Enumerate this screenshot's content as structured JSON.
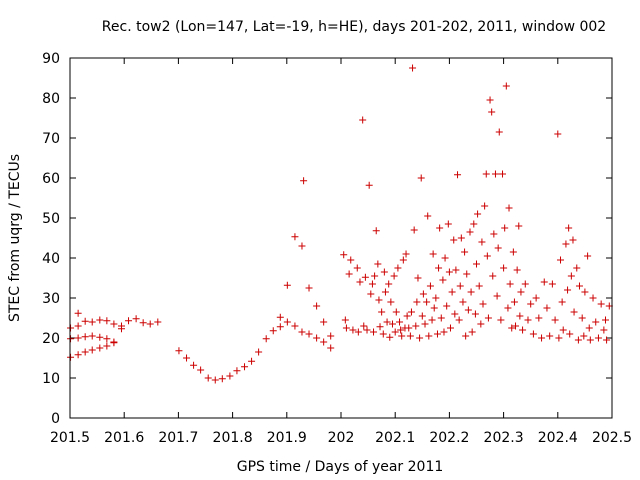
{
  "chart_data": {
    "type": "scatter",
    "title": "Rec. tow2 (Lon=147, Lat=-19, h=HE), days 201-202, 2011, window 002",
    "xlabel": "GPS time / Days of year 2011",
    "ylabel": "STEC from uqrg / TECUs",
    "xlim": [
      201.5,
      202.5
    ],
    "ylim": [
      0,
      90
    ],
    "xticks": [
      201.5,
      201.6,
      201.7,
      201.8,
      201.9,
      202,
      202.1,
      202.2,
      202.3,
      202.4,
      202.5
    ],
    "xtick_labels": [
      "201.5",
      "201.6",
      "201.7",
      "201.8",
      "201.9",
      "202",
      "202.1",
      "202.2",
      "202.3",
      "202.4",
      "202.5"
    ],
    "yticks": [
      0,
      10,
      20,
      30,
      40,
      50,
      60,
      70,
      80,
      90
    ],
    "ytick_labels": [
      "0",
      "10",
      "20",
      "30",
      "40",
      "50",
      "60",
      "70",
      "80",
      "90"
    ],
    "marker": "+",
    "color": "#cc0000",
    "grid": false,
    "series": [
      {
        "name": "STEC",
        "points": [
          [
            201.501,
            15.2
          ],
          [
            201.515,
            15.8
          ],
          [
            201.528,
            16.5
          ],
          [
            201.541,
            17.0
          ],
          [
            201.555,
            17.5
          ],
          [
            201.568,
            18.0
          ],
          [
            201.581,
            18.8
          ],
          [
            201.501,
            19.8
          ],
          [
            201.515,
            20.0
          ],
          [
            201.528,
            20.3
          ],
          [
            201.541,
            20.5
          ],
          [
            201.555,
            20.2
          ],
          [
            201.568,
            19.8
          ],
          [
            201.581,
            19.0
          ],
          [
            201.501,
            22.5
          ],
          [
            201.515,
            23.0
          ],
          [
            201.528,
            24.2
          ],
          [
            201.541,
            24.0
          ],
          [
            201.555,
            24.5
          ],
          [
            201.568,
            24.3
          ],
          [
            201.581,
            23.5
          ],
          [
            201.595,
            23.0
          ],
          [
            201.515,
            26.2
          ],
          [
            201.595,
            22.3
          ],
          [
            201.608,
            24.3
          ],
          [
            201.622,
            24.8
          ],
          [
            201.635,
            23.8
          ],
          [
            201.648,
            23.5
          ],
          [
            201.662,
            24.0
          ],
          [
            201.701,
            16.8
          ],
          [
            201.715,
            15.0
          ],
          [
            201.728,
            13.2
          ],
          [
            201.741,
            12.0
          ],
          [
            201.755,
            10.0
          ],
          [
            201.768,
            9.5
          ],
          [
            201.781,
            9.8
          ],
          [
            201.795,
            10.5
          ],
          [
            201.808,
            11.8
          ],
          [
            201.822,
            12.8
          ],
          [
            201.835,
            14.2
          ],
          [
            201.848,
            16.5
          ],
          [
            201.862,
            19.8
          ],
          [
            201.875,
            21.8
          ],
          [
            201.888,
            22.8
          ],
          [
            201.888,
            25.2
          ],
          [
            201.901,
            24.0
          ],
          [
            201.901,
            33.2
          ],
          [
            201.915,
            23.0
          ],
          [
            201.915,
            45.3
          ],
          [
            201.928,
            21.5
          ],
          [
            201.928,
            43.0
          ],
          [
            201.931,
            59.3
          ],
          [
            201.941,
            21.0
          ],
          [
            201.941,
            32.5
          ],
          [
            201.955,
            20.0
          ],
          [
            201.955,
            28.0
          ],
          [
            201.968,
            24.0
          ],
          [
            201.968,
            19.0
          ],
          [
            201.981,
            20.5
          ],
          [
            201.981,
            17.5
          ],
          [
            202.005,
            40.8
          ],
          [
            202.008,
            24.5
          ],
          [
            202.01,
            22.5
          ],
          [
            202.015,
            36.0
          ],
          [
            202.018,
            39.5
          ],
          [
            202.022,
            22.0
          ],
          [
            202.03,
            37.5
          ],
          [
            202.032,
            21.5
          ],
          [
            202.035,
            34.0
          ],
          [
            202.04,
            74.5
          ],
          [
            202.042,
            23.0
          ],
          [
            202.045,
            35.2
          ],
          [
            202.048,
            22.0
          ],
          [
            202.052,
            58.2
          ],
          [
            202.055,
            31.0
          ],
          [
            202.058,
            33.5
          ],
          [
            202.06,
            21.5
          ],
          [
            202.062,
            35.5
          ],
          [
            202.065,
            46.8
          ],
          [
            202.068,
            38.5
          ],
          [
            202.07,
            29.5
          ],
          [
            202.072,
            22.8
          ],
          [
            202.075,
            26.5
          ],
          [
            202.078,
            21.0
          ],
          [
            202.08,
            36.5
          ],
          [
            202.082,
            31.5
          ],
          [
            202.085,
            24.0
          ],
          [
            202.088,
            33.5
          ],
          [
            202.09,
            20.2
          ],
          [
            202.092,
            29.0
          ],
          [
            202.095,
            23.5
          ],
          [
            202.098,
            35.5
          ],
          [
            202.1,
            21.5
          ],
          [
            202.102,
            26.5
          ],
          [
            202.105,
            37.5
          ],
          [
            202.108,
            24.0
          ],
          [
            202.11,
            22.0
          ],
          [
            202.112,
            20.5
          ],
          [
            202.115,
            39.5
          ],
          [
            202.118,
            22.5
          ],
          [
            202.12,
            41.0
          ],
          [
            202.122,
            25.5
          ],
          [
            202.125,
            22.5
          ],
          [
            202.128,
            20.5
          ],
          [
            202.13,
            26.5
          ],
          [
            202.132,
            87.5
          ],
          [
            202.135,
            47.0
          ],
          [
            202.138,
            23.0
          ],
          [
            202.14,
            29.0
          ],
          [
            202.142,
            35.0
          ],
          [
            202.145,
            20.0
          ],
          [
            202.148,
            60.0
          ],
          [
            202.15,
            25.5
          ],
          [
            202.152,
            31.0
          ],
          [
            202.155,
            23.5
          ],
          [
            202.158,
            29.0
          ],
          [
            202.16,
            50.5
          ],
          [
            202.162,
            20.5
          ],
          [
            202.165,
            33.0
          ],
          [
            202.168,
            24.5
          ],
          [
            202.17,
            41.0
          ],
          [
            202.172,
            27.5
          ],
          [
            202.175,
            30.0
          ],
          [
            202.178,
            21.0
          ],
          [
            202.18,
            37.5
          ],
          [
            202.182,
            47.5
          ],
          [
            202.185,
            25.0
          ],
          [
            202.188,
            34.5
          ],
          [
            202.19,
            21.5
          ],
          [
            202.192,
            40.0
          ],
          [
            202.195,
            28.0
          ],
          [
            202.198,
            48.5
          ],
          [
            202.2,
            36.5
          ],
          [
            202.202,
            22.5
          ],
          [
            202.205,
            31.5
          ],
          [
            202.208,
            44.5
          ],
          [
            202.21,
            26.0
          ],
          [
            202.212,
            37.0
          ],
          [
            202.215,
            60.8
          ],
          [
            202.218,
            24.5
          ],
          [
            202.22,
            33.0
          ],
          [
            202.222,
            45.0
          ],
          [
            202.225,
            29.0
          ],
          [
            202.228,
            41.5
          ],
          [
            202.23,
            20.5
          ],
          [
            202.232,
            36.0
          ],
          [
            202.235,
            27.0
          ],
          [
            202.238,
            46.5
          ],
          [
            202.24,
            31.5
          ],
          [
            202.242,
            21.5
          ],
          [
            202.245,
            48.5
          ],
          [
            202.248,
            26.0
          ],
          [
            202.25,
            38.5
          ],
          [
            202.252,
            51.0
          ],
          [
            202.255,
            33.0
          ],
          [
            202.258,
            23.5
          ],
          [
            202.26,
            44.0
          ],
          [
            202.262,
            28.5
          ],
          [
            202.265,
            53.0
          ],
          [
            202.268,
            61.0
          ],
          [
            202.27,
            40.5
          ],
          [
            202.272,
            25.0
          ],
          [
            202.275,
            79.5
          ],
          [
            202.278,
            76.5
          ],
          [
            202.28,
            35.5
          ],
          [
            202.282,
            46.0
          ],
          [
            202.285,
            61.0
          ],
          [
            202.288,
            30.5
          ],
          [
            202.29,
            42.5
          ],
          [
            202.292,
            71.5
          ],
          [
            202.295,
            24.5
          ],
          [
            202.298,
            61.0
          ],
          [
            202.3,
            37.5
          ],
          [
            202.302,
            47.5
          ],
          [
            202.305,
            83.0
          ],
          [
            202.308,
            27.5
          ],
          [
            202.31,
            52.5
          ],
          [
            202.312,
            33.5
          ],
          [
            202.315,
            22.5
          ],
          [
            202.318,
            41.5
          ],
          [
            202.32,
            29.0
          ],
          [
            202.322,
            23.0
          ],
          [
            202.325,
            37.0
          ],
          [
            202.328,
            48.0
          ],
          [
            202.33,
            25.5
          ],
          [
            202.332,
            31.5
          ],
          [
            202.335,
            22.0
          ],
          [
            202.34,
            33.5
          ],
          [
            202.345,
            24.5
          ],
          [
            202.35,
            28.5
          ],
          [
            202.355,
            21.0
          ],
          [
            202.36,
            30.0
          ],
          [
            202.365,
            25.0
          ],
          [
            202.37,
            20.0
          ],
          [
            202.375,
            34.0
          ],
          [
            202.38,
            27.5
          ],
          [
            202.385,
            20.5
          ],
          [
            202.39,
            33.5
          ],
          [
            202.395,
            24.5
          ],
          [
            202.4,
            71.0
          ],
          [
            202.402,
            20.0
          ],
          [
            202.405,
            39.5
          ],
          [
            202.408,
            29.0
          ],
          [
            202.41,
            22.0
          ],
          [
            202.415,
            43.5
          ],
          [
            202.418,
            32.0
          ],
          [
            202.42,
            47.5
          ],
          [
            202.422,
            21.0
          ],
          [
            202.425,
            35.5
          ],
          [
            202.428,
            44.5
          ],
          [
            202.43,
            26.5
          ],
          [
            202.435,
            37.5
          ],
          [
            202.438,
            19.5
          ],
          [
            202.44,
            33.0
          ],
          [
            202.445,
            25.0
          ],
          [
            202.448,
            20.5
          ],
          [
            202.45,
            31.5
          ],
          [
            202.455,
            40.5
          ],
          [
            202.458,
            22.5
          ],
          [
            202.46,
            19.5
          ],
          [
            202.465,
            30.0
          ],
          [
            202.47,
            24.0
          ],
          [
            202.475,
            20.0
          ],
          [
            202.48,
            28.5
          ],
          [
            202.485,
            22.0
          ],
          [
            202.488,
            24.5
          ],
          [
            202.49,
            19.5
          ],
          [
            202.495,
            28.0
          ]
        ]
      }
    ]
  }
}
